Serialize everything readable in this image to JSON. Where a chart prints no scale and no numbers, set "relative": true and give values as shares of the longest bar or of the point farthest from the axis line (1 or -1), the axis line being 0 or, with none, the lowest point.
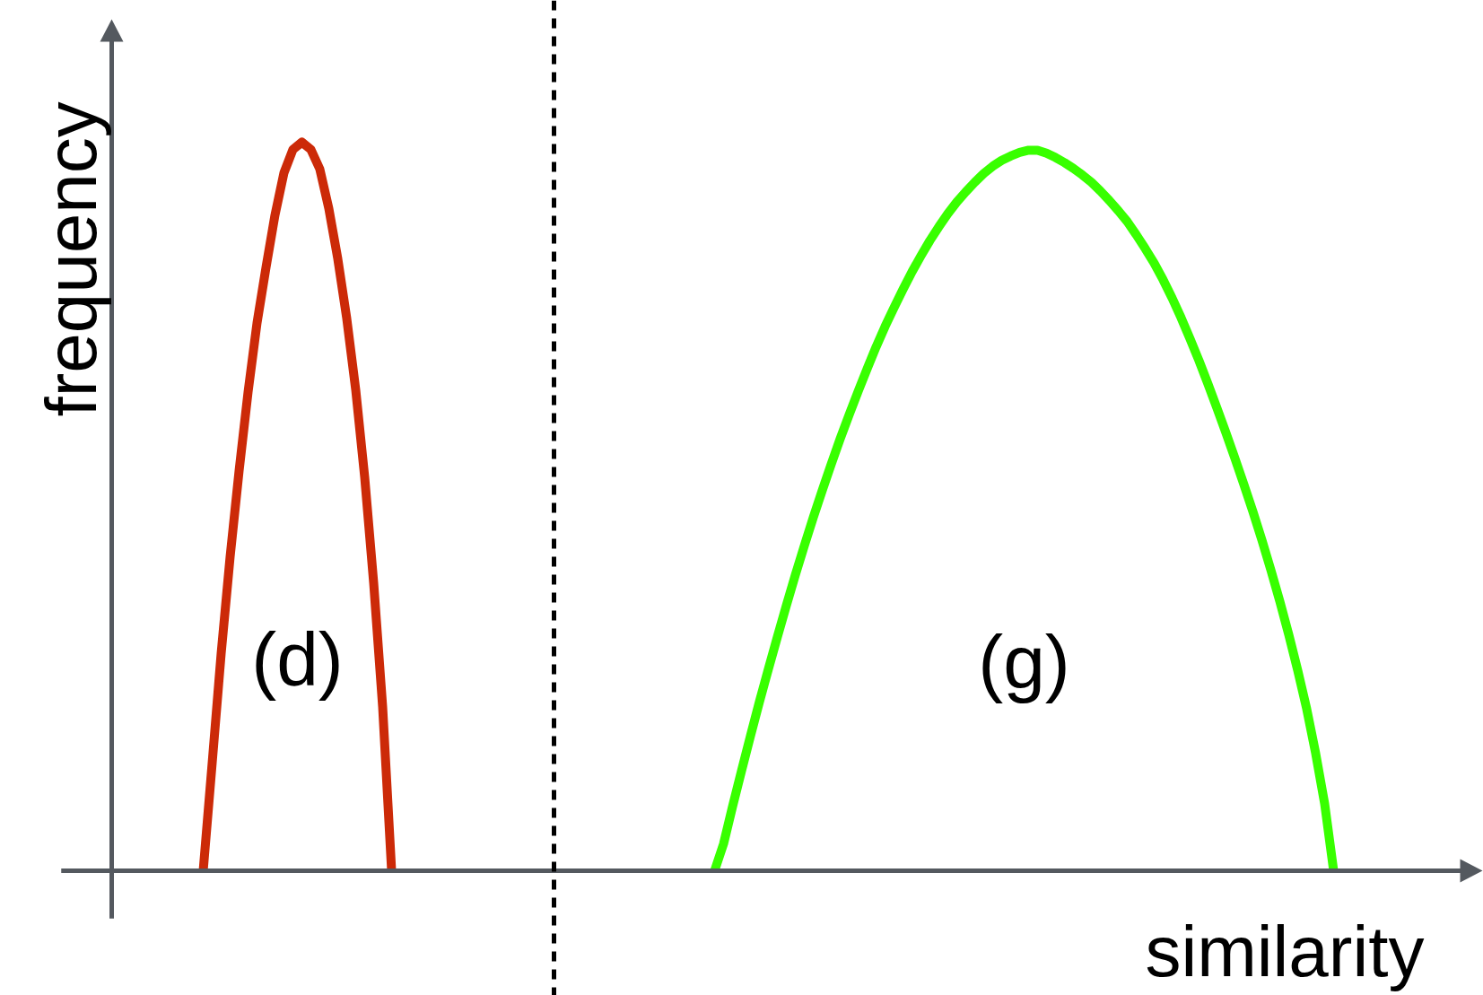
{
  "chart_data": {
    "type": "line",
    "xlabel": "similarity",
    "ylabel": "frequency",
    "relative": true,
    "categories": [
      null,
      null,
      null,
      null,
      null,
      null,
      null,
      null,
      null,
      null,
      null,
      null,
      null,
      null,
      null,
      null,
      null,
      null,
      null,
      null,
      null,
      null,
      null,
      null,
      null,
      null,
      null,
      null,
      null,
      null,
      null,
      null,
      null,
      null,
      null,
      null,
      null,
      null,
      null,
      null,
      null,
      null,
      null,
      null,
      null,
      null,
      null,
      null,
      null,
      null,
      null,
      null,
      null,
      null,
      null,
      null,
      null,
      null,
      null,
      null,
      null,
      null,
      null,
      null,
      null,
      null,
      null,
      null,
      null,
      null,
      null,
      null,
      null,
      null,
      null,
      null,
      null,
      null,
      null,
      null,
      null,
      null,
      null,
      null,
      null,
      null,
      null,
      null,
      null,
      null,
      null,
      null,
      null,
      null,
      null,
      null,
      null,
      null,
      null,
      null,
      null,
      null,
      null,
      null,
      null,
      null,
      null,
      null,
      null,
      null,
      null,
      null,
      null,
      null,
      null,
      null,
      null,
      null,
      null,
      null,
      null,
      null,
      null,
      null,
      null,
      null,
      null,
      null,
      null,
      null,
      null,
      null,
      null,
      null,
      null,
      null,
      null
    ],
    "series": [
      {
        "name": "(d)",
        "color": "#cc2a08",
        "values": [
          null,
          null,
          null,
          null,
          null,
          null,
          null,
          null,
          null,
          null,
          0,
          0.148,
          0.298,
          0.431,
          0.549,
          0.657,
          0.752,
          0.828,
          0.9,
          0.958,
          0.99,
          1,
          0.99,
          0.963,
          0.909,
          0.84,
          0.758,
          0.66,
          0.54,
          0.395,
          0.225,
          0,
          null,
          null,
          null,
          null,
          null,
          null,
          null,
          null,
          null,
          null,
          null,
          null,
          null,
          null,
          null,
          null,
          null,
          null,
          null,
          null,
          null,
          null,
          null,
          null,
          null,
          null,
          null,
          null,
          null,
          null,
          null,
          null,
          null,
          null,
          null,
          null,
          null,
          null,
          null,
          null,
          null,
          null,
          null,
          null,
          null,
          null,
          null,
          null,
          null,
          null,
          null,
          null,
          null,
          null,
          null,
          null,
          null,
          null,
          null,
          null,
          null,
          null,
          null,
          null,
          null,
          null,
          null,
          null,
          null,
          null,
          null,
          null,
          null,
          null,
          null,
          null,
          null,
          null,
          null,
          null,
          null,
          null,
          null,
          null,
          null,
          null,
          null,
          null,
          null,
          null,
          null,
          null,
          null,
          null,
          null,
          null,
          null,
          null,
          null,
          null,
          null,
          null,
          null,
          null,
          null
        ]
      },
      {
        "name": "(g)",
        "color": "#38ff00",
        "values": [
          null,
          null,
          null,
          null,
          null,
          null,
          null,
          null,
          null,
          null,
          null,
          null,
          null,
          null,
          null,
          null,
          null,
          null,
          null,
          null,
          null,
          null,
          null,
          null,
          null,
          null,
          null,
          null,
          null,
          null,
          null,
          null,
          null,
          null,
          null,
          null,
          null,
          null,
          null,
          null,
          null,
          null,
          null,
          null,
          null,
          null,
          null,
          null,
          null,
          null,
          null,
          null,
          null,
          null,
          null,
          null,
          null,
          null,
          null,
          null,
          null,
          null,
          null,
          null,
          null,
          null,
          null,
          0,
          0.037,
          0.088,
          0.137,
          0.185,
          0.232,
          0.277,
          0.321,
          0.364,
          0.406,
          0.446,
          0.485,
          0.522,
          0.558,
          0.593,
          0.626,
          0.658,
          0.689,
          0.719,
          0.747,
          0.773,
          0.798,
          0.822,
          0.844,
          0.865,
          0.884,
          0.902,
          0.918,
          0.932,
          0.945,
          0.957,
          0.967,
          0.975,
          0.981,
          0.986,
          0.989,
          0.989,
          0.985,
          0.979,
          0.972,
          0.964,
          0.955,
          0.945,
          0.933,
          0.92,
          0.906,
          0.891,
          0.873,
          0.854,
          0.834,
          0.811,
          0.786,
          0.759,
          0.73,
          0.7,
          0.668,
          0.635,
          0.601,
          0.566,
          0.53,
          0.493,
          0.454,
          0.413,
          0.37,
          0.324,
          0.275,
          0.222,
          0.161,
          0.092,
          0
        ]
      }
    ]
  }
}
